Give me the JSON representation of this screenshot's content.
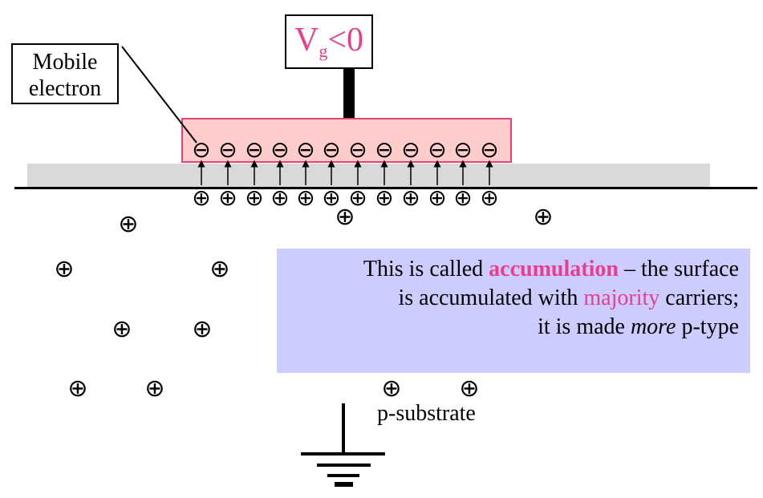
{
  "labels": {
    "mobile_electron": [
      "Mobile",
      "electron"
    ],
    "gate_voltage": {
      "v": "V",
      "sub": "g",
      "rest": "<0"
    },
    "substrate": "p-substrate"
  },
  "note": {
    "line1_pre": "This is called ",
    "line1_bold": "accumulation",
    "line1_post": " – the surface",
    "line2_pre": "is accumulated with ",
    "line2_pink": "majority",
    "line2_post": " carriers;",
    "line3_pre": "it is made ",
    "line3_italic": "more",
    "line3_post": " p-type"
  },
  "symbols": {
    "electron": "⊖",
    "hole": "⊕"
  },
  "colors": {
    "accent": "#e83e8c",
    "gate_fill": "#ffcccc",
    "oxide": "#d9d9d9",
    "note_bg": "#ccccff"
  }
}
